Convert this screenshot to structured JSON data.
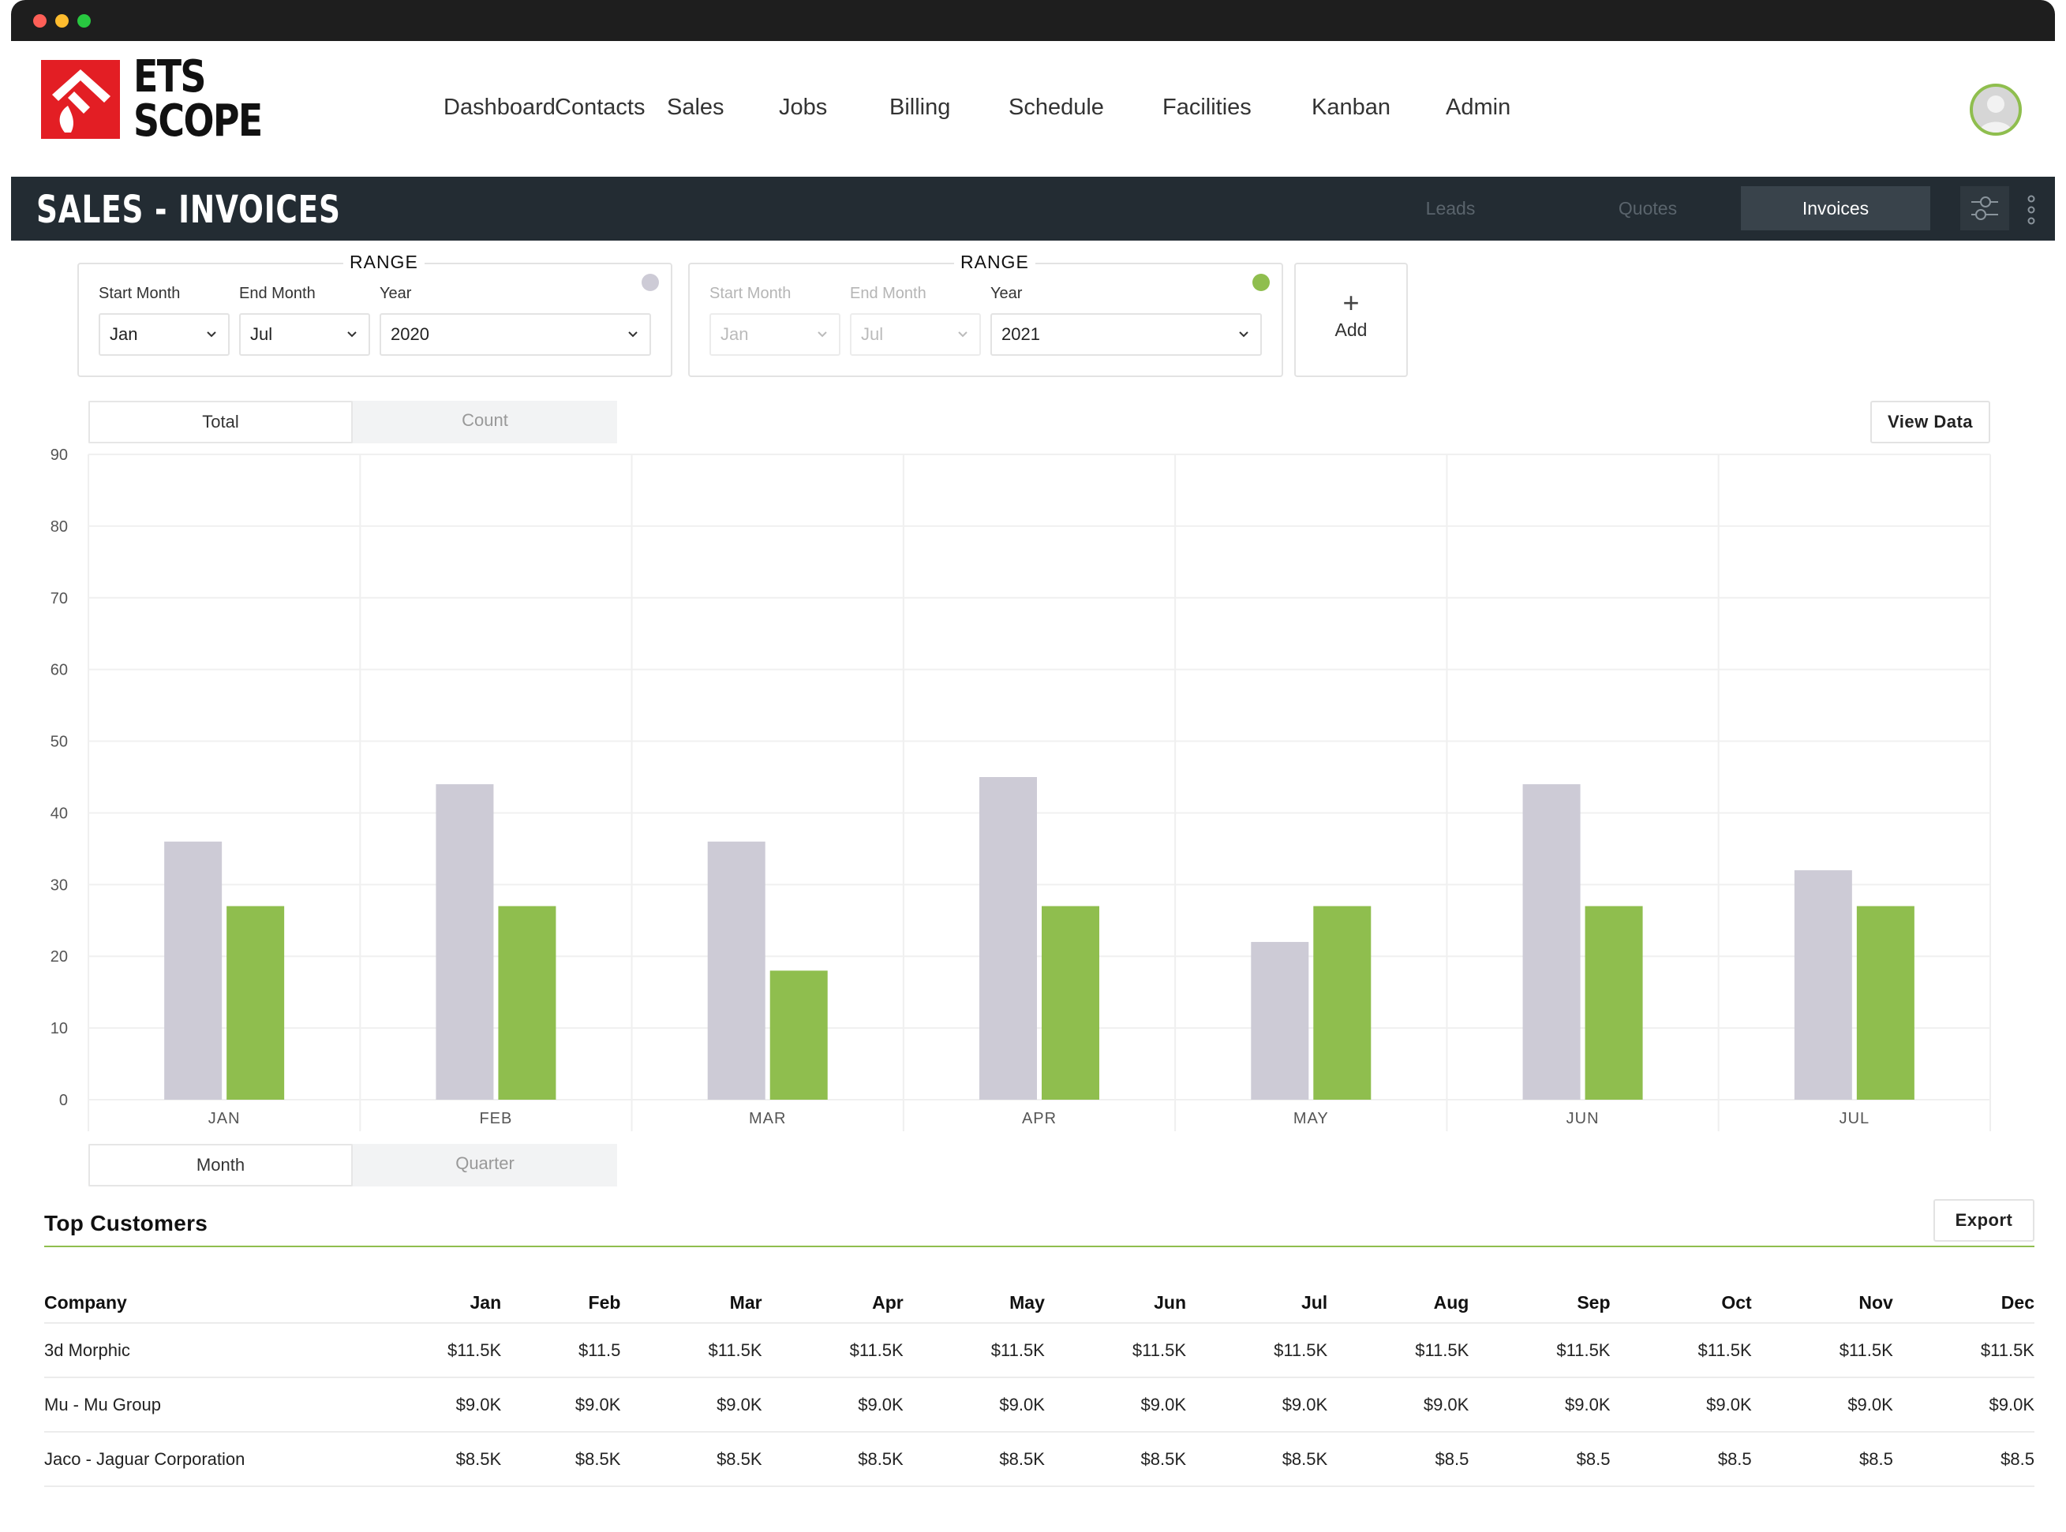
{
  "app": {
    "brand_line1": "ETS",
    "brand_line2": "SCOPE",
    "colors": {
      "brand_red": "#e31e24",
      "accent_green": "#8fbe4e",
      "series_2020": "#cdcbd6",
      "series_2021": "#8fbe4e",
      "header_dark": "#232c33"
    }
  },
  "nav": {
    "items": [
      "Dashboard",
      "Contacts",
      "Sales",
      "Jobs",
      "Billing",
      "Schedule",
      "Facilities",
      "Kanban",
      "Admin"
    ]
  },
  "header": {
    "title": "SALES - INVOICES",
    "tabs": [
      "Leads",
      "Quotes",
      "Invoices"
    ],
    "active_tab": "Invoices"
  },
  "ranges": [
    {
      "legend": "RANGE",
      "start_label": "Start Month",
      "end_label": "End Month",
      "year_label": "Year",
      "start": "Jan",
      "end": "Jul",
      "year": "2020",
      "indicator_color": "#cdcbd6"
    },
    {
      "legend": "RANGE",
      "start_label": "Start Month",
      "end_label": "End Month",
      "year_label": "Year",
      "start": "Jan",
      "end": "Jul",
      "year": "2021",
      "indicator_color": "#8fbe4e"
    }
  ],
  "add_button": {
    "icon": "plus-icon",
    "label": "Add"
  },
  "metric_toggle": {
    "options": [
      "Total",
      "Count"
    ],
    "selected": "Total"
  },
  "view_data_label": "View Data",
  "period_toggle": {
    "options": [
      "Month",
      "Quarter"
    ],
    "selected": "Month"
  },
  "chart_data": {
    "type": "bar",
    "categories": [
      "JAN",
      "FEB",
      "MAR",
      "APR",
      "MAY",
      "JUN",
      "JUL"
    ],
    "series": [
      {
        "values": [
          36,
          44,
          36,
          45,
          22,
          44,
          32
        ],
        "color": "#cdcbd6"
      },
      {
        "values": [
          27,
          27,
          18,
          27,
          27,
          27,
          27
        ],
        "color": "#8fbe4e"
      }
    ],
    "yticks": [
      0,
      10,
      20,
      30,
      40,
      50,
      60,
      70,
      80,
      90
    ],
    "ylim": [
      0,
      90
    ],
    "grid": true,
    "xlabel": "",
    "ylabel": ""
  },
  "top_customers": {
    "title": "Top Customers",
    "export_label": "Export",
    "columns": [
      "Company",
      "Jan",
      "Feb",
      "Mar",
      "Apr",
      "May",
      "Jun",
      "Jul",
      "Aug",
      "Sep",
      "Oct",
      "Nov",
      "Dec"
    ],
    "rows": [
      [
        "3d Morphic",
        "$11.5K",
        "$11.5",
        "$11.5K",
        "$11.5K",
        "$11.5K",
        "$11.5K",
        "$11.5K",
        "$11.5K",
        "$11.5K",
        "$11.5K",
        "$11.5K",
        "$11.5K"
      ],
      [
        "Mu - Mu Group",
        "$9.0K",
        "$9.0K",
        "$9.0K",
        "$9.0K",
        "$9.0K",
        "$9.0K",
        "$9.0K",
        "$9.0K",
        "$9.0K",
        "$9.0K",
        "$9.0K",
        "$9.0K"
      ],
      [
        "Jaco - Jaguar Corporation",
        "$8.5K",
        "$8.5K",
        "$8.5K",
        "$8.5K",
        "$8.5K",
        "$8.5K",
        "$8.5K",
        "$8.5",
        "$8.5",
        "$8.5",
        "$8.5",
        "$8.5"
      ]
    ]
  }
}
